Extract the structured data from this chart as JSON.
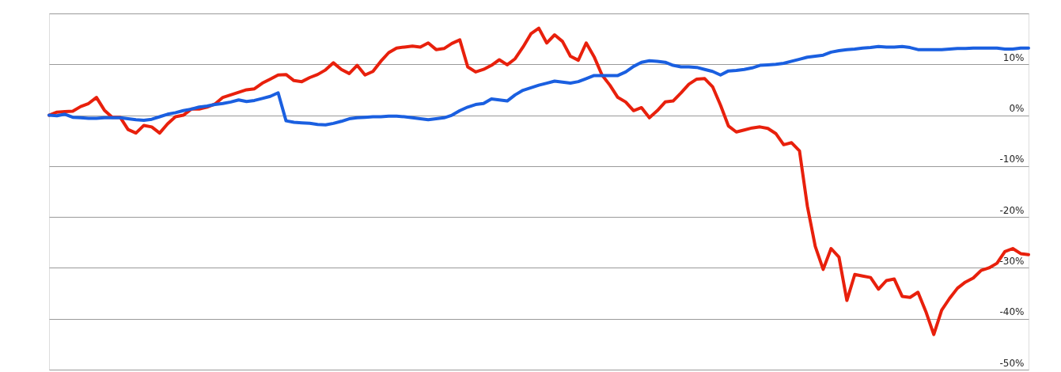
{
  "chart_data": {
    "type": "line",
    "categories": [
      null,
      null,
      null,
      null,
      null,
      null,
      null,
      null,
      null,
      null,
      null,
      null,
      null,
      null,
      null,
      null,
      null,
      null,
      null,
      null,
      null,
      null,
      null,
      null,
      null,
      null,
      null,
      null,
      null,
      null,
      null,
      null,
      null,
      null,
      null,
      null,
      null,
      null,
      null,
      null,
      null,
      null,
      null,
      null,
      null,
      null,
      null,
      null,
      null,
      null,
      null,
      null,
      null,
      null,
      null,
      null,
      null,
      null,
      null,
      null,
      null,
      null,
      null,
      null,
      null,
      null,
      null,
      null,
      null,
      null,
      null,
      null,
      null,
      null,
      null,
      null,
      null,
      null,
      null,
      null,
      null,
      null,
      null,
      null,
      null,
      null,
      null,
      null,
      null,
      null,
      null,
      null,
      null,
      null,
      null,
      null,
      null,
      null,
      null,
      null,
      null,
      null,
      null,
      null,
      null,
      null,
      null,
      null,
      null,
      null,
      null,
      null,
      null,
      null,
      null,
      null,
      null,
      null,
      null,
      null,
      null,
      null,
      null,
      null,
      null
    ],
    "ylim": [
      -50,
      20
    ],
    "yticks": [
      {
        "value": -50,
        "label": "-50%"
      },
      {
        "value": -40,
        "label": "-40%"
      },
      {
        "value": -30,
        "label": "-30%"
      },
      {
        "value": -20,
        "label": "-20%"
      },
      {
        "value": -10,
        "label": "-10%"
      },
      {
        "value": 0,
        "label": "0%"
      },
      {
        "value": 10,
        "label": "10%"
      },
      {
        "value": 20,
        "label": null
      }
    ],
    "grid": "y",
    "marker": "none",
    "line_style": "solid",
    "series": [
      {
        "color": "#e8200c",
        "values": [
          0,
          0.6,
          0.7,
          0.8,
          1.7,
          2.3,
          3.5,
          1.0,
          -0.4,
          -0.4,
          -2.8,
          -3.5,
          -2.0,
          -2.3,
          -3.5,
          -1.7,
          -0.3,
          0.0,
          1.2,
          1.2,
          1.6,
          2.2,
          3.5,
          4.0,
          4.5,
          5.0,
          5.2,
          6.3,
          7.1,
          7.9,
          8.0,
          6.8,
          6.6,
          7.4,
          8.0,
          8.9,
          10.3,
          9.0,
          8.2,
          9.8,
          7.9,
          8.6,
          10.6,
          12.3,
          13.2,
          13.4,
          13.6,
          13.4,
          14.2,
          12.9,
          13.1,
          14.1,
          14.8,
          9.5,
          8.5,
          9.0,
          9.8,
          10.9,
          9.9,
          11.1,
          13.4,
          16.0,
          17.1,
          14.2,
          15.8,
          14.5,
          11.6,
          10.8,
          14.2,
          11.5,
          7.9,
          5.9,
          3.5,
          2.6,
          0.9,
          1.5,
          -0.5,
          0.9,
          2.6,
          2.8,
          4.4,
          6.1,
          7.1,
          7.2,
          5.6,
          2.0,
          -2.1,
          -3.3,
          -2.9,
          -2.5,
          -2.3,
          -2.6,
          -3.6,
          -5.8,
          -5.4,
          -7.0,
          -17.9,
          -25.8,
          -30.3,
          -26.2,
          -27.9,
          -36.4,
          -31.3,
          -31.6,
          -31.9,
          -34.2,
          -32.5,
          -32.2,
          -35.6,
          -35.8,
          -34.8,
          -38.6,
          -43.1,
          -38.3,
          -36.0,
          -34.0,
          -32.8,
          -32.0,
          -30.5,
          -30.0,
          -29.1,
          -26.8,
          -26.2,
          -27.2,
          -27.4
        ]
      },
      {
        "color": "#1a5fe0",
        "values": [
          0,
          -0.1,
          0.2,
          -0.4,
          -0.5,
          -0.6,
          -0.6,
          -0.5,
          -0.5,
          -0.5,
          -0.7,
          -0.9,
          -1.0,
          -0.8,
          -0.3,
          0.2,
          0.5,
          0.9,
          1.2,
          1.6,
          1.8,
          2.1,
          2.3,
          2.6,
          3.0,
          2.7,
          2.9,
          3.3,
          3.7,
          4.4,
          -1.1,
          -1.4,
          -1.5,
          -1.6,
          -1.8,
          -1.9,
          -1.6,
          -1.2,
          -0.7,
          -0.5,
          -0.4,
          -0.3,
          -0.3,
          -0.2,
          -0.2,
          -0.3,
          -0.5,
          -0.7,
          -0.9,
          -0.7,
          -0.5,
          0,
          0.9,
          1.6,
          2.1,
          2.3,
          3.2,
          3.0,
          2.8,
          4.0,
          4.9,
          5.4,
          5.9,
          6.3,
          6.7,
          6.5,
          6.3,
          6.6,
          7.2,
          7.8,
          7.8,
          7.8,
          7.8,
          8.5,
          9.6,
          10.4,
          10.7,
          10.6,
          10.4,
          9.8,
          9.5,
          9.5,
          9.4,
          9.0,
          8.6,
          7.9,
          8.7,
          8.8,
          9.0,
          9.3,
          9.8,
          9.9,
          10.0,
          10.2,
          10.6,
          11.0,
          11.4,
          11.6,
          11.8,
          12.4,
          12.7,
          12.9,
          13.0,
          13.2,
          13.3,
          13.5,
          13.4,
          13.4,
          13.5,
          13.3,
          12.9,
          12.9,
          12.9,
          12.9,
          13.0,
          13.1,
          13.1,
          13.2,
          13.2,
          13.2,
          13.2,
          13.0,
          13.0,
          13.2,
          13.2
        ]
      }
    ]
  }
}
